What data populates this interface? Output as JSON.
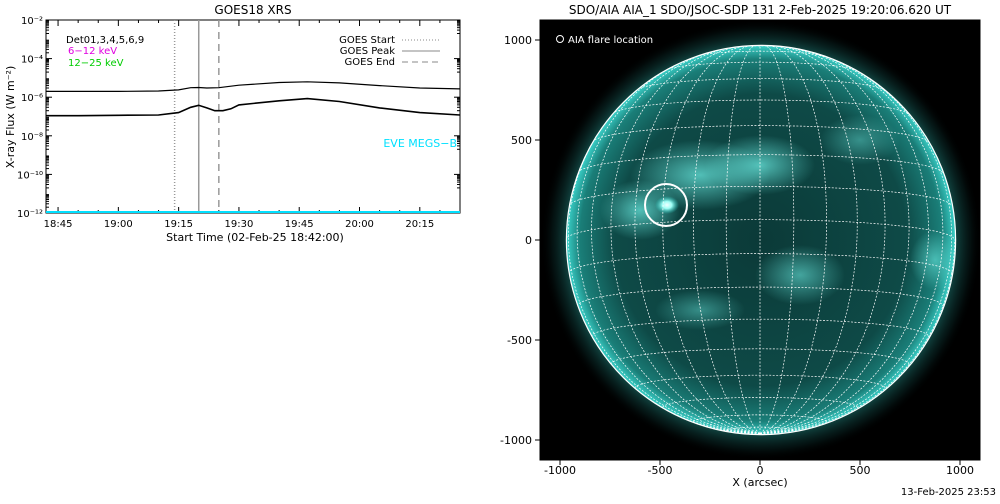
{
  "goes_panel": {
    "title": "GOES18 XRS",
    "ylabel": "X-ray Flux (W m⁻²)",
    "xlabel": "Start Time (02-Feb-25 18:42:00)",
    "detector_text": "Det01,3,4,5,6,9",
    "band_labels": [
      {
        "text": "6−12 keV",
        "color": "#e000e0"
      },
      {
        "text": "12−25 keV",
        "color": "#00cc00"
      }
    ],
    "legend": [
      "GOES Start",
      "GOES Peak",
      "GOES End"
    ],
    "eve_label": "EVE MEGS−B",
    "eve_color": "#00e0ff"
  },
  "aia_panel": {
    "title": "SDO/AIA AIA_1 SDO/JSOC-SDP 131  2-Feb-2025 19:20:06.620 UT",
    "legend": "AIA flare location",
    "xlabel": "X (arcsec)",
    "accent_color": "#20c8c0"
  },
  "timestamp": "13-Feb-2025 23:53",
  "chart_data": [
    {
      "type": "line",
      "title": "GOES18 XRS",
      "xlabel": "Start Time (02-Feb-25 18:42:00)",
      "ylabel": "X-ray Flux (W m⁻²)",
      "yscale": "log",
      "xlim": [
        "18:42",
        "20:25"
      ],
      "ylim": [
        1e-12,
        0.01
      ],
      "x_ticks": [
        "18:45",
        "19:00",
        "19:15",
        "19:30",
        "19:45",
        "20:00",
        "20:15"
      ],
      "y_ticks": [
        "10⁻¹²",
        "10⁻¹⁰",
        "10⁻⁸",
        "10⁻⁶",
        "10⁻⁴",
        "10⁻²"
      ],
      "y_tick_values": [
        1e-12,
        1e-10,
        1e-08,
        1e-06,
        0.0001,
        0.01
      ],
      "series": [
        {
          "color": "#000000",
          "x": [
            "18:42",
            "18:50",
            "19:00",
            "19:10",
            "19:15",
            "19:18",
            "19:20",
            "19:22",
            "19:25",
            "19:30",
            "19:40",
            "19:47",
            "19:55",
            "20:05",
            "20:15",
            "20:25"
          ],
          "y": [
            2e-06,
            2e-06,
            2e-06,
            2.1e-06,
            2.4e-06,
            3.1e-06,
            3.2e-06,
            3e-06,
            3.1e-06,
            4.2e-06,
            5.8e-06,
            6.3e-06,
            5.5e-06,
            4e-06,
            3e-06,
            2.7e-06
          ]
        },
        {
          "color": "#000000",
          "x": [
            "18:42",
            "18:50",
            "19:00",
            "19:10",
            "19:15",
            "19:18",
            "19:20",
            "19:22",
            "19:24",
            "19:26",
            "19:28",
            "19:30",
            "19:40",
            "19:47",
            "19:55",
            "20:05",
            "20:15",
            "20:25"
          ],
          "y": [
            1.1e-07,
            1.1e-07,
            1.15e-07,
            1.2e-07,
            1.6e-07,
            3e-07,
            3.8e-07,
            2.8e-07,
            2e-07,
            2e-07,
            2.5e-07,
            4e-07,
            6.5e-07,
            8.5e-07,
            6e-07,
            2.8e-07,
            1.6e-07,
            1.2e-07
          ]
        }
      ],
      "markers": [
        {
          "label": "GOES Start",
          "x": "19:14",
          "style": "dotted"
        },
        {
          "label": "GOES Peak",
          "x": "19:20",
          "style": "solid"
        },
        {
          "label": "GOES End",
          "x": "19:25",
          "style": "dashed"
        }
      ],
      "baseline": {
        "color": "#00e0ff",
        "y": 1e-12
      }
    },
    {
      "type": "image",
      "title": "SDO/AIA AIA_1 SDO/JSOC-SDP 131  2-Feb-2025 19:20:06.620 UT",
      "xlabel": "X (arcsec)",
      "xlim": [
        -1100,
        1100
      ],
      "ylim": [
        -1100,
        1100
      ],
      "x_ticks": [
        -1000,
        -500,
        0,
        500,
        1000
      ],
      "y_ticks": [
        -1000,
        -500,
        0,
        500,
        1000
      ],
      "solar_radius": 973,
      "grid_step_deg": 10,
      "flare_location": {
        "x": -470,
        "y": 175,
        "r": 105
      }
    }
  ]
}
